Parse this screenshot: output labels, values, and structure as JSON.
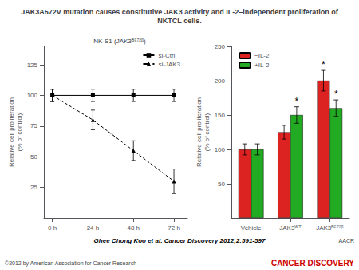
{
  "title": "JAK3A572V mutation causes constitutive JAK3 activity and IL-2–independent proliferation of\nNKTCL cells.",
  "annotations": [
    {
      "text": "Ghee Chong Koo et al. Cancer Discovery 2012;2:591-597"
    },
    {
      "text": "©2012 by American Association for Cancer Research",
      "color": "#444444"
    },
    {
      "text": "CANCER DISCOVERY",
      "color": "#cc0000"
    },
    {
      "text": "AACR",
      "color": "#444444"
    }
  ],
  "chart_data": [
    {
      "type": "line",
      "subtitle": "NK-S1 (JAK3ᴮ⁵⁷²ᵝ)",
      "ylabel": "Relative cell proliferation\n(% of control)",
      "x": [
        0,
        24,
        48,
        72
      ],
      "xlim": [
        -5,
        80
      ],
      "xticks": [
        {
          "value": 0,
          "label": "0 h"
        },
        {
          "value": 24,
          "label": "24 h"
        },
        {
          "value": 48,
          "label": "48 h"
        },
        {
          "value": 72,
          "label": "72 h"
        }
      ],
      "ylim": [
        0,
        140
      ],
      "yticks": [
        25,
        50,
        75,
        100,
        125
      ],
      "grid": false,
      "legend": "upper right",
      "series": [
        {
          "name": "si-Ctrl",
          "color": "#000000",
          "marker": "square",
          "line_style": "solid",
          "values": [
            100,
            100,
            100,
            100
          ],
          "errors": [
            5,
            5,
            5,
            5
          ]
        },
        {
          "name": "si-JAK3",
          "color": "#000000",
          "marker": "triangle",
          "line_style": "dashed",
          "values": [
            100,
            80,
            55,
            30
          ],
          "errors": [
            5,
            8,
            8,
            10
          ]
        }
      ]
    },
    {
      "type": "bar",
      "ylabel": "Relative cell proliferation\n(% of control)",
      "categories": [
        "Vehicle",
        "JAK3ᵂᵀ",
        "JAK3ᴮ⁵⁷²ᵝ"
      ],
      "ylim": [
        0,
        250
      ],
      "yticks": [
        50,
        100,
        150,
        200,
        250
      ],
      "grid": false,
      "legend": "upper left",
      "series": [
        {
          "name": "−IL-2",
          "color": "#dd2222",
          "values": [
            100,
            125,
            200
          ],
          "errors": [
            8,
            10,
            15
          ]
        },
        {
          "name": "+IL-2",
          "color": "#22aa22",
          "values": [
            100,
            150,
            160
          ],
          "errors": [
            8,
            12,
            12
          ]
        }
      ],
      "annotations": [
        {
          "text": "*",
          "series": "−IL-2",
          "category": "JAK3ᴮ⁵⁷²ᵝ"
        },
        {
          "text": "*",
          "series": "+IL-2",
          "category": "JAK3ᴮ⁵⁷²ᵝ"
        },
        {
          "text": "*",
          "series": "+IL-2",
          "category": "JAK3ᵂᵀ"
        }
      ]
    }
  ]
}
